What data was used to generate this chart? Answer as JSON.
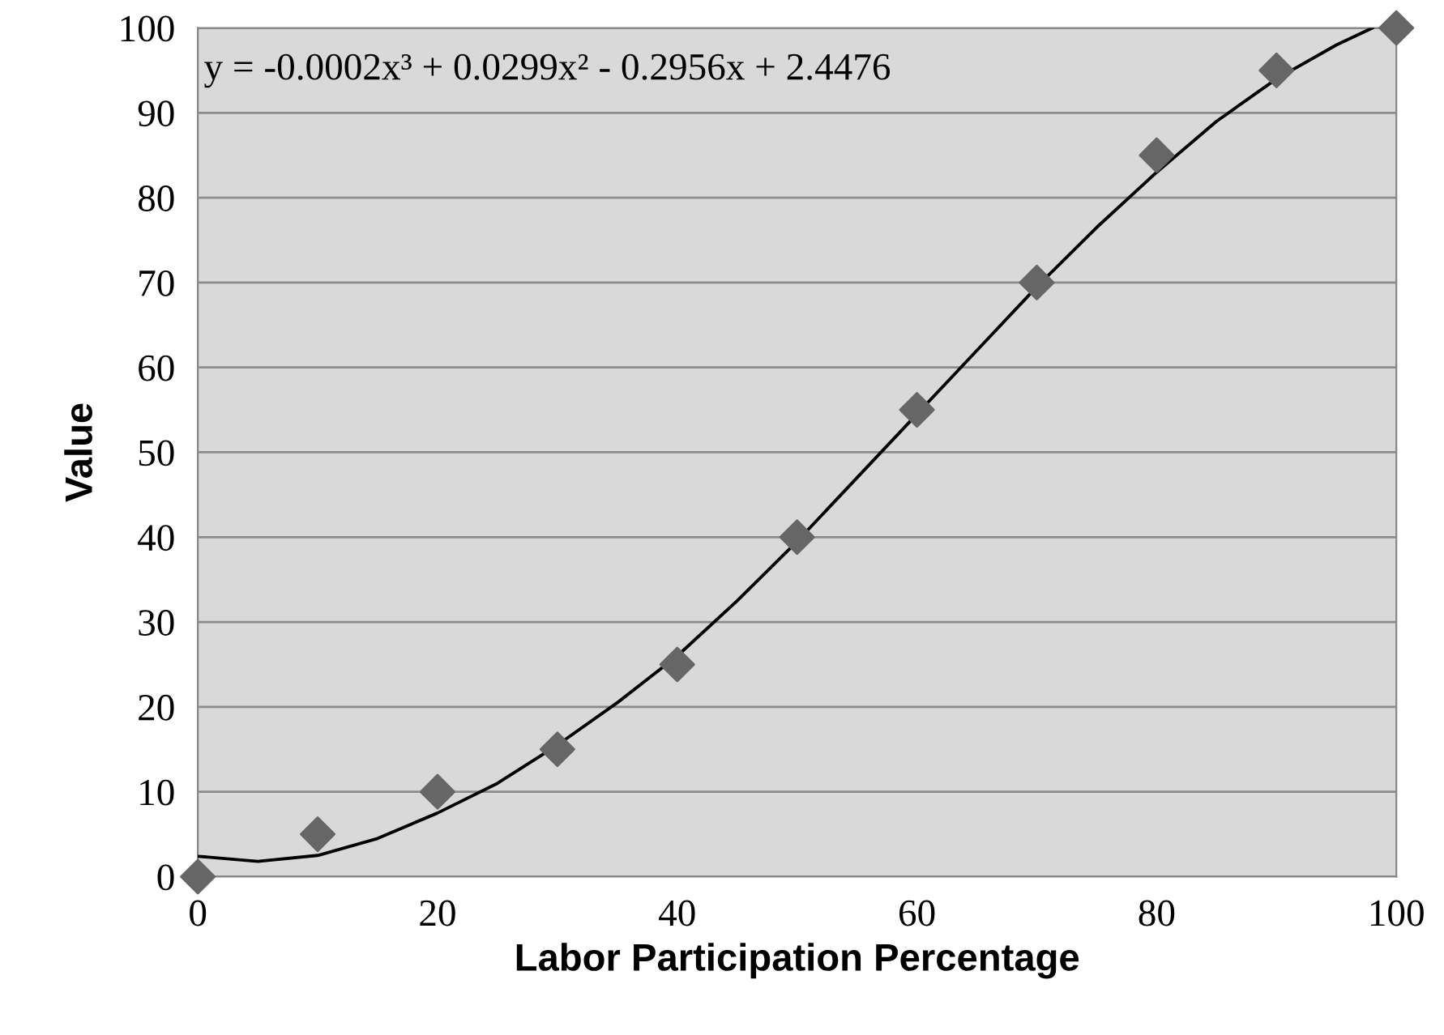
{
  "chart_data": {
    "type": "scatter",
    "xlabel": "Labor Participation Percentage",
    "ylabel": "Value",
    "annotations": [
      "y = -0.0002x³ + 0.0299x² - 0.2956x + 2.4476"
    ],
    "x": [
      0,
      10,
      20,
      30,
      40,
      50,
      60,
      70,
      80,
      90,
      100
    ],
    "series": [
      {
        "color": "#666666",
        "marker": "diamond",
        "values": [
          0,
          5,
          10,
          15,
          25,
          40,
          55,
          70,
          85,
          95,
          100
        ]
      },
      {
        "type": "line",
        "color": "#000000",
        "marker": "none",
        "line_style": "solid",
        "x": [
          0,
          5,
          10,
          15,
          20,
          25,
          30,
          35,
          40,
          45,
          50,
          55,
          60,
          65,
          70,
          75,
          80,
          85,
          90,
          95,
          98
        ],
        "values": [
          2.4,
          1.8,
          2.5,
          4.5,
          7.5,
          11,
          15.5,
          20.5,
          26,
          32.5,
          39.5,
          47,
          54.5,
          62,
          69.5,
          76.5,
          83,
          89,
          94,
          98,
          100
        ]
      }
    ],
    "xlim": [
      0,
      100
    ],
    "xticks": [
      0,
      20,
      40,
      60,
      80,
      100
    ],
    "ylim": [
      0,
      100
    ],
    "yticks": [
      0,
      10,
      20,
      30,
      40,
      50,
      60,
      70,
      80,
      90,
      100
    ],
    "grid": "y",
    "legend": false
  }
}
